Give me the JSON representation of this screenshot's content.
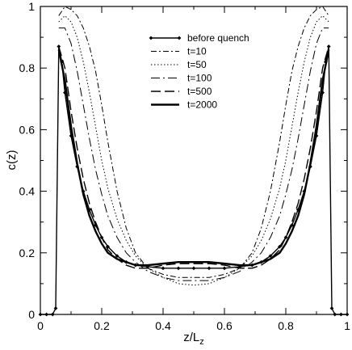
{
  "chart_data": {
    "type": "line",
    "xlabel_main": "z/L",
    "xlabel_sub": "z",
    "ylabel": "c(z)",
    "xlim": [
      0,
      1
    ],
    "ylim": [
      0,
      1
    ],
    "xticks": [
      0,
      0.2,
      0.4,
      0.6,
      0.8,
      1
    ],
    "xtick_labels": [
      "0",
      "0.2",
      "0.4",
      "0.6",
      "0.8",
      "1"
    ],
    "yticks": [
      0,
      0.2,
      0.4,
      0.6,
      0.8,
      1
    ],
    "ytick_labels": [
      "0",
      "0.2",
      "0.4",
      "0.6",
      "0.8",
      "1"
    ],
    "grid": false,
    "legend_position": "top-right",
    "series": [
      {
        "name": "before quench",
        "style": "solid-diamond",
        "x": [
          0.0,
          0.02,
          0.04,
          0.05,
          0.06,
          0.07,
          0.08,
          0.1,
          0.12,
          0.14,
          0.16,
          0.18,
          0.2,
          0.22,
          0.25,
          0.28,
          0.31,
          0.35,
          0.4,
          0.45,
          0.5,
          0.55,
          0.6,
          0.65,
          0.69,
          0.72,
          0.75,
          0.78,
          0.8,
          0.82,
          0.84,
          0.86,
          0.88,
          0.9,
          0.92,
          0.93,
          0.94,
          0.95,
          0.96,
          0.98,
          1.0
        ],
        "y": [
          0.0,
          0.0,
          0.0,
          0.02,
          0.87,
          0.82,
          0.72,
          0.58,
          0.48,
          0.4,
          0.34,
          0.29,
          0.25,
          0.22,
          0.19,
          0.17,
          0.16,
          0.155,
          0.15,
          0.15,
          0.15,
          0.15,
          0.15,
          0.155,
          0.16,
          0.17,
          0.19,
          0.22,
          0.25,
          0.29,
          0.34,
          0.4,
          0.48,
          0.58,
          0.72,
          0.82,
          0.87,
          0.02,
          0.0,
          0.0,
          0.0
        ]
      },
      {
        "name": "t=10",
        "style": "dash-dot",
        "x": [
          0.06,
          0.08,
          0.1,
          0.12,
          0.14,
          0.16,
          0.18,
          0.2,
          0.22,
          0.25,
          0.28,
          0.31,
          0.35,
          0.4,
          0.45,
          0.5,
          0.55,
          0.6,
          0.65,
          0.69,
          0.72,
          0.75,
          0.78,
          0.8,
          0.82,
          0.84,
          0.86,
          0.88,
          0.9,
          0.92,
          0.94
        ],
        "y": [
          0.97,
          1.0,
          0.99,
          0.97,
          0.93,
          0.87,
          0.79,
          0.68,
          0.56,
          0.4,
          0.28,
          0.2,
          0.15,
          0.13,
          0.12,
          0.12,
          0.12,
          0.13,
          0.15,
          0.2,
          0.28,
          0.4,
          0.56,
          0.68,
          0.79,
          0.87,
          0.93,
          0.97,
          0.99,
          1.0,
          0.97
        ]
      },
      {
        "name": "t=50",
        "style": "dotted",
        "x": [
          0.06,
          0.08,
          0.1,
          0.12,
          0.14,
          0.16,
          0.18,
          0.2,
          0.22,
          0.25,
          0.28,
          0.31,
          0.35,
          0.4,
          0.45,
          0.5,
          0.55,
          0.6,
          0.65,
          0.69,
          0.72,
          0.75,
          0.78,
          0.8,
          0.82,
          0.84,
          0.86,
          0.88,
          0.9,
          0.92,
          0.94
        ],
        "y": [
          0.95,
          0.97,
          0.95,
          0.9,
          0.82,
          0.72,
          0.61,
          0.5,
          0.41,
          0.31,
          0.24,
          0.19,
          0.15,
          0.12,
          0.1,
          0.095,
          0.1,
          0.12,
          0.15,
          0.19,
          0.24,
          0.31,
          0.41,
          0.5,
          0.61,
          0.72,
          0.82,
          0.9,
          0.95,
          0.97,
          0.95
        ]
      },
      {
        "name": "t=100",
        "style": "long-dash-dot",
        "x": [
          0.06,
          0.08,
          0.1,
          0.12,
          0.14,
          0.16,
          0.18,
          0.2,
          0.22,
          0.25,
          0.28,
          0.31,
          0.35,
          0.4,
          0.45,
          0.5,
          0.55,
          0.6,
          0.65,
          0.69,
          0.72,
          0.75,
          0.78,
          0.8,
          0.82,
          0.84,
          0.86,
          0.88,
          0.9,
          0.92,
          0.94
        ],
        "y": [
          0.93,
          0.93,
          0.88,
          0.79,
          0.68,
          0.57,
          0.47,
          0.39,
          0.32,
          0.25,
          0.2,
          0.17,
          0.14,
          0.12,
          0.11,
          0.11,
          0.11,
          0.12,
          0.14,
          0.17,
          0.2,
          0.25,
          0.32,
          0.39,
          0.47,
          0.57,
          0.68,
          0.79,
          0.88,
          0.93,
          0.93
        ]
      },
      {
        "name": "t=500",
        "style": "dashed",
        "x": [
          0.06,
          0.08,
          0.1,
          0.12,
          0.14,
          0.16,
          0.18,
          0.2,
          0.22,
          0.25,
          0.28,
          0.31,
          0.35,
          0.4,
          0.45,
          0.5,
          0.55,
          0.6,
          0.65,
          0.69,
          0.72,
          0.75,
          0.78,
          0.8,
          0.82,
          0.84,
          0.86,
          0.88,
          0.9,
          0.92,
          0.94
        ],
        "y": [
          0.87,
          0.8,
          0.66,
          0.54,
          0.44,
          0.36,
          0.3,
          0.25,
          0.21,
          0.18,
          0.16,
          0.15,
          0.15,
          0.16,
          0.165,
          0.165,
          0.165,
          0.16,
          0.15,
          0.15,
          0.16,
          0.18,
          0.21,
          0.25,
          0.3,
          0.36,
          0.44,
          0.54,
          0.66,
          0.8,
          0.87
        ]
      },
      {
        "name": "t=2000",
        "style": "thick-solid",
        "x": [
          0.06,
          0.08,
          0.1,
          0.12,
          0.14,
          0.16,
          0.18,
          0.2,
          0.22,
          0.25,
          0.28,
          0.31,
          0.35,
          0.4,
          0.45,
          0.5,
          0.55,
          0.6,
          0.65,
          0.69,
          0.72,
          0.75,
          0.78,
          0.8,
          0.82,
          0.84,
          0.86,
          0.88,
          0.9,
          0.92,
          0.94
        ],
        "y": [
          0.86,
          0.76,
          0.61,
          0.49,
          0.39,
          0.32,
          0.27,
          0.23,
          0.2,
          0.18,
          0.17,
          0.16,
          0.16,
          0.165,
          0.17,
          0.17,
          0.17,
          0.165,
          0.16,
          0.16,
          0.17,
          0.18,
          0.2,
          0.23,
          0.27,
          0.32,
          0.39,
          0.49,
          0.61,
          0.76,
          0.86
        ]
      }
    ]
  }
}
